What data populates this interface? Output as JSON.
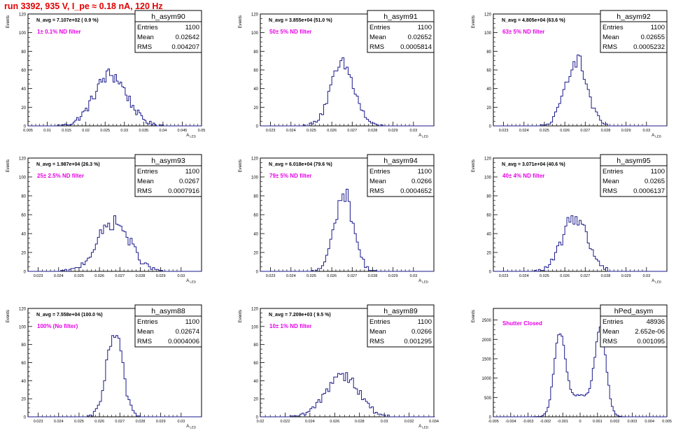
{
  "header": {
    "title": "run 3392,   935 V, I_pe ≈ 0.18 nA, 120 Hz"
  },
  "colors": {
    "hist": "#1a1a8c",
    "note": "#e600e6",
    "title": "#e00000",
    "axis": "#000000"
  },
  "chart_data": [
    {
      "type": "histogram",
      "name": "h_asym90",
      "stats": {
        "entries": "1100",
        "mean": "0.02642",
        "rms": "0.004207"
      },
      "navg": "N_avg = 7.107e+02 ( 0.9 %)",
      "filter": "1± 0.1% ND filter",
      "ylabel": "Events",
      "xlabel": "A_LED",
      "xlim": [
        0.005,
        0.05
      ],
      "ylim": [
        0,
        120
      ],
      "xticks": [
        0.005,
        0.01,
        0.015,
        0.02,
        0.025,
        0.03,
        0.035,
        0.04,
        0.045,
        0.05
      ],
      "xtick_labels": [
        "0.005",
        "0.01",
        "0.015",
        "0.02",
        "0.025",
        "0.03",
        "0.035",
        "0.04",
        "0.045",
        "0.05"
      ],
      "yticks": [
        0,
        20,
        40,
        60,
        80,
        100,
        120
      ],
      "ytick_labels": [
        "0",
        "20",
        "40",
        "60",
        "80",
        "100",
        "120"
      ],
      "dist": [
        {
          "mu": 0.02642,
          "sigma": 0.004207,
          "peak": 55
        }
      ],
      "bin_width": 0.00045
    },
    {
      "type": "histogram",
      "name": "h_asym91",
      "stats": {
        "entries": "1100",
        "mean": "0.02652",
        "rms": "0.0005814"
      },
      "navg": "N_avg = 3.855e+04 (51.0 %)",
      "filter": "50± 5% ND filter",
      "ylabel": "Events",
      "xlabel": "A_LED",
      "xlim": [
        0.0225,
        0.031
      ],
      "ylim": [
        0,
        120
      ],
      "xticks": [
        0.023,
        0.024,
        0.025,
        0.026,
        0.027,
        0.028,
        0.029,
        0.03
      ],
      "xtick_labels": [
        "0.023",
        "0.024",
        "0.025",
        "0.026",
        "0.027",
        "0.028",
        "0.029",
        "0.03"
      ],
      "yticks": [
        0,
        20,
        40,
        60,
        80,
        100,
        120
      ],
      "ytick_labels": [
        "0",
        "20",
        "40",
        "60",
        "80",
        "100",
        "120"
      ],
      "dist": [
        {
          "mu": 0.02652,
          "sigma": 0.0005814,
          "peak": 65
        }
      ],
      "bin_width": 0.0001
    },
    {
      "type": "histogram",
      "name": "h_asym92",
      "stats": {
        "entries": "1100",
        "mean": "0.02655",
        "rms": "0.0005232"
      },
      "navg": "N_avg = 4.805e+04 (63.6 %)",
      "filter": "63± 5% ND filter",
      "ylabel": "Events",
      "xlabel": "A_LED",
      "xlim": [
        0.0225,
        0.031
      ],
      "ylim": [
        0,
        120
      ],
      "xticks": [
        0.023,
        0.024,
        0.025,
        0.026,
        0.027,
        0.028,
        0.029,
        0.03
      ],
      "xtick_labels": [
        "0.023",
        "0.024",
        "0.025",
        "0.026",
        "0.027",
        "0.028",
        "0.029",
        "0.03"
      ],
      "yticks": [
        0,
        20,
        40,
        60,
        80,
        100,
        120
      ],
      "ytick_labels": [
        "0",
        "20",
        "40",
        "60",
        "80",
        "100",
        "120"
      ],
      "dist": [
        {
          "mu": 0.02655,
          "sigma": 0.0005232,
          "peak": 72
        }
      ],
      "bin_width": 0.0001
    },
    {
      "type": "histogram",
      "name": "h_asym93",
      "stats": {
        "entries": "1100",
        "mean": "0.0267",
        "rms": "0.0007916"
      },
      "navg": "N_avg = 1.987e+04 (26.3 %)",
      "filter": "25± 2.5% ND filter",
      "ylabel": "Events",
      "xlabel": "A_LED",
      "xlim": [
        0.0225,
        0.031
      ],
      "ylim": [
        0,
        120
      ],
      "xticks": [
        0.023,
        0.024,
        0.025,
        0.026,
        0.027,
        0.028,
        0.029,
        0.03
      ],
      "xtick_labels": [
        "0.023",
        "0.024",
        "0.025",
        "0.026",
        "0.027",
        "0.028",
        "0.029",
        "0.03"
      ],
      "yticks": [
        0,
        20,
        40,
        60,
        80,
        100,
        120
      ],
      "ytick_labels": [
        "0",
        "20",
        "40",
        "60",
        "80",
        "100",
        "120"
      ],
      "dist": [
        {
          "mu": 0.0267,
          "sigma": 0.0007916,
          "peak": 52
        }
      ],
      "bin_width": 0.0001
    },
    {
      "type": "histogram",
      "name": "h_asym94",
      "stats": {
        "entries": "1100",
        "mean": "0.0266",
        "rms": "0.0004652"
      },
      "navg": "N_avg = 6.018e+04 (79.6 %)",
      "filter": "79± 5% ND filter",
      "ylabel": "Events",
      "xlabel": "A_LED",
      "xlim": [
        0.0225,
        0.031
      ],
      "ylim": [
        0,
        120
      ],
      "xticks": [
        0.023,
        0.024,
        0.025,
        0.026,
        0.027,
        0.028,
        0.029,
        0.03
      ],
      "xtick_labels": [
        "0.023",
        "0.024",
        "0.025",
        "0.026",
        "0.027",
        "0.028",
        "0.029",
        "0.03"
      ],
      "yticks": [
        0,
        20,
        40,
        60,
        80,
        100,
        120
      ],
      "ytick_labels": [
        "0",
        "20",
        "40",
        "60",
        "80",
        "100",
        "120"
      ],
      "dist": [
        {
          "mu": 0.0266,
          "sigma": 0.0004652,
          "peak": 82
        }
      ],
      "bin_width": 0.0001
    },
    {
      "type": "histogram",
      "name": "h_asym95",
      "stats": {
        "entries": "1100",
        "mean": "0.0265",
        "rms": "0.0006137"
      },
      "navg": "N_avg = 3.071e+04 (40.6 %)",
      "filter": "40± 4% ND filter",
      "ylabel": "Events",
      "xlabel": "A_LED",
      "xlim": [
        0.0225,
        0.031
      ],
      "ylim": [
        0,
        120
      ],
      "xticks": [
        0.023,
        0.024,
        0.025,
        0.026,
        0.027,
        0.028,
        0.029,
        0.03
      ],
      "xtick_labels": [
        "0.023",
        "0.024",
        "0.025",
        "0.026",
        "0.027",
        "0.028",
        "0.029",
        "0.03"
      ],
      "yticks": [
        0,
        20,
        40,
        60,
        80,
        100,
        120
      ],
      "ytick_labels": [
        "0",
        "20",
        "40",
        "60",
        "80",
        "100",
        "120"
      ],
      "dist": [
        {
          "mu": 0.0265,
          "sigma": 0.0006137,
          "peak": 58
        }
      ],
      "bin_width": 0.0001
    },
    {
      "type": "histogram",
      "name": "h_asym88",
      "stats": {
        "entries": "1100",
        "mean": "0.02674",
        "rms": "0.0004006"
      },
      "navg": "N_avg = 7.558e+04 (100.0 %)",
      "filter": "100% (No filter)",
      "ylabel": "Events",
      "xlabel": "A_LED",
      "xlim": [
        0.0225,
        0.031
      ],
      "ylim": [
        0,
        120
      ],
      "xticks": [
        0.023,
        0.024,
        0.025,
        0.026,
        0.027,
        0.028,
        0.029,
        0.03
      ],
      "xtick_labels": [
        "0.023",
        "0.024",
        "0.025",
        "0.026",
        "0.027",
        "0.028",
        "0.029",
        "0.03"
      ],
      "yticks": [
        0,
        20,
        40,
        60,
        80,
        100,
        120
      ],
      "ytick_labels": [
        "0",
        "20",
        "40",
        "60",
        "80",
        "100",
        "120"
      ],
      "dist": [
        {
          "mu": 0.02674,
          "sigma": 0.0004006,
          "peak": 90
        }
      ],
      "bin_width": 0.0001
    },
    {
      "type": "histogram",
      "name": "h_asym89",
      "stats": {
        "entries": "1100",
        "mean": "0.0266",
        "rms": "0.001295"
      },
      "navg": "N_avg = 7.209e+03 ( 9.5 %)",
      "filter": "10± 1% ND filter",
      "ylabel": "Events",
      "xlabel": "A_LED",
      "xlim": [
        0.02,
        0.034
      ],
      "ylim": [
        0,
        120
      ],
      "xticks": [
        0.02,
        0.022,
        0.024,
        0.026,
        0.028,
        0.03,
        0.032,
        0.034
      ],
      "xtick_labels": [
        "0.02",
        "0.022",
        "0.024",
        "0.026",
        "0.028",
        "0.03",
        "0.032",
        "0.034"
      ],
      "yticks": [
        0,
        20,
        40,
        60,
        80,
        100,
        120
      ],
      "ytick_labels": [
        "0",
        "20",
        "40",
        "60",
        "80",
        "100",
        "120"
      ],
      "dist": [
        {
          "mu": 0.0266,
          "sigma": 0.001295,
          "peak": 48
        }
      ],
      "bin_width": 0.00016
    },
    {
      "type": "histogram",
      "name": "hPed_asym",
      "stats": {
        "entries": "48936",
        "mean": "2.652e-06",
        "rms": "0.001095"
      },
      "navg": "",
      "filter": "Shutter Closed",
      "ylabel": "Events",
      "xlabel": "",
      "xlim": [
        -0.005,
        0.005
      ],
      "ylim": [
        0,
        2800
      ],
      "xticks": [
        -0.005,
        -0.004,
        -0.003,
        -0.002,
        -0.001,
        0,
        0.001,
        0.002,
        0.003,
        0.004,
        0.005
      ],
      "xtick_labels": [
        "-0.005",
        "-0.004",
        "-0.003",
        "-0.002",
        "-0.001",
        "0",
        "0.001",
        "0.002",
        "0.003",
        "0.004",
        "0.005"
      ],
      "yticks": [
        0,
        500,
        1000,
        1500,
        2000,
        2500
      ],
      "ytick_labels": [
        "0",
        "500",
        "1000",
        "1500",
        "2000",
        "2500"
      ],
      "dist": [
        {
          "mu": -0.00118,
          "sigma": 0.00032,
          "peak": 2000
        },
        {
          "mu": 0.00118,
          "sigma": 0.00032,
          "peak": 2150
        },
        {
          "mu": 0.0,
          "sigma": 0.0008,
          "peak": 550
        }
      ],
      "bin_width": 0.0001
    }
  ]
}
